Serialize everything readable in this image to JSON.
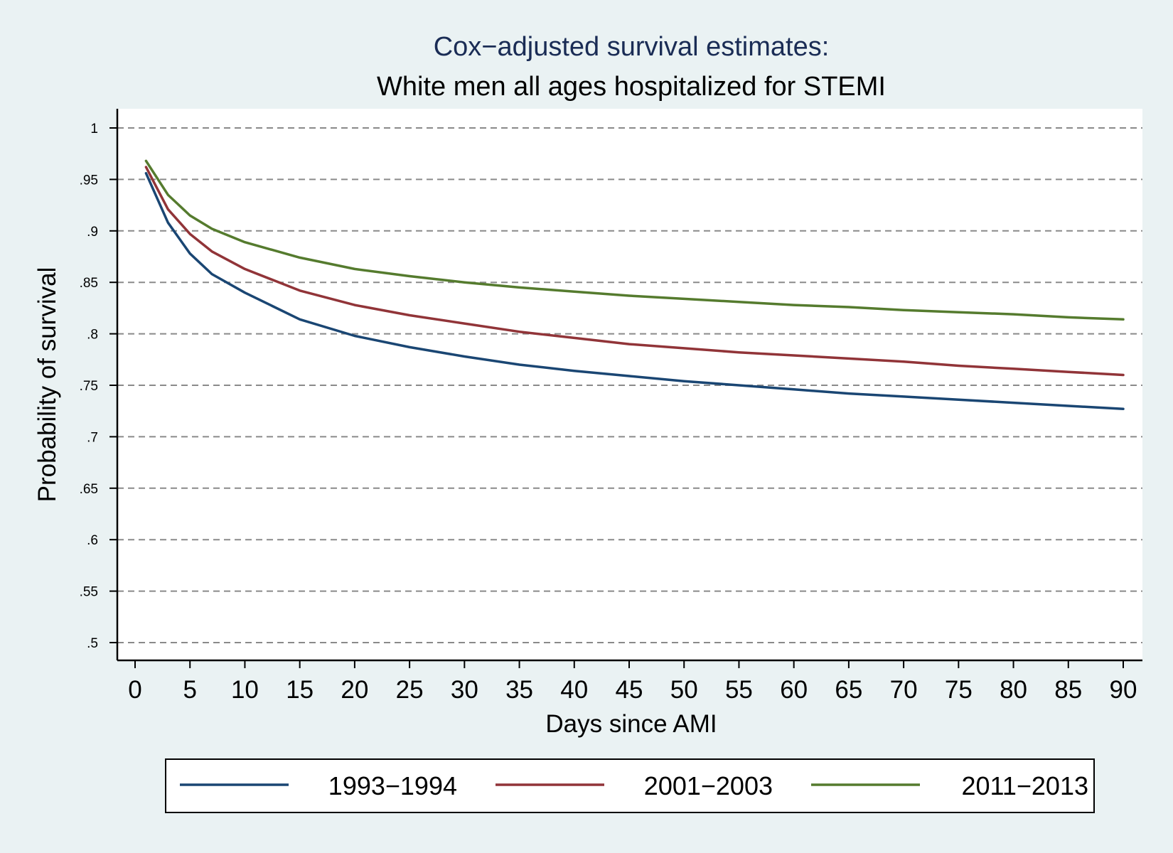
{
  "chart_data": {
    "type": "line",
    "title": "Cox−adjusted survival estimates:",
    "subtitle": "White men all ages hospitalized for STEMI",
    "xlabel": "Days since AMI",
    "ylabel": "Probability of survival",
    "xlim": [
      0,
      90
    ],
    "ylim": [
      0.5,
      1
    ],
    "xticks": [
      0,
      5,
      10,
      15,
      20,
      25,
      30,
      35,
      40,
      45,
      50,
      55,
      60,
      65,
      70,
      75,
      80,
      85,
      90
    ],
    "xtick_labels": [
      "0",
      "5",
      "10",
      "15",
      "20",
      "25",
      "30",
      "35",
      "40",
      "45",
      "50",
      "55",
      "60",
      "65",
      "70",
      "75",
      "80",
      "85",
      "90"
    ],
    "yticks": [
      0.5,
      0.55,
      0.6,
      0.65,
      0.7,
      0.75,
      0.8,
      0.85,
      0.9,
      0.95,
      1
    ],
    "ytick_labels": [
      ".5",
      ".55",
      ".6",
      ".65",
      ".7",
      ".75",
      ".8",
      ".85",
      ".9",
      ".95",
      "1"
    ],
    "grid": "horizontal-dashed",
    "legend_position": "bottom",
    "colors": {
      "background": "#eaf2f3",
      "plot_area": "#ffffff",
      "title": "#1a2c55",
      "grid": "#8a8a8a"
    },
    "x": [
      1,
      3,
      5,
      7,
      10,
      15,
      20,
      25,
      30,
      35,
      40,
      45,
      50,
      55,
      60,
      65,
      70,
      75,
      80,
      85,
      90
    ],
    "series": [
      {
        "name": "1993−1994",
        "color": "#1a4673",
        "values": [
          0.956,
          0.908,
          0.878,
          0.858,
          0.84,
          0.814,
          0.798,
          0.787,
          0.778,
          0.77,
          0.764,
          0.759,
          0.754,
          0.75,
          0.746,
          0.742,
          0.739,
          0.736,
          0.733,
          0.73,
          0.727
        ]
      },
      {
        "name": "2001−2003",
        "color": "#913438",
        "values": [
          0.962,
          0.921,
          0.897,
          0.88,
          0.863,
          0.842,
          0.828,
          0.818,
          0.81,
          0.802,
          0.796,
          0.79,
          0.786,
          0.782,
          0.779,
          0.776,
          0.773,
          0.769,
          0.766,
          0.763,
          0.76
        ]
      },
      {
        "name": "2011−2013",
        "color": "#557b2e",
        "values": [
          0.968,
          0.935,
          0.915,
          0.902,
          0.889,
          0.874,
          0.863,
          0.856,
          0.85,
          0.845,
          0.841,
          0.837,
          0.834,
          0.831,
          0.828,
          0.826,
          0.823,
          0.821,
          0.819,
          0.816,
          0.814
        ]
      }
    ]
  }
}
